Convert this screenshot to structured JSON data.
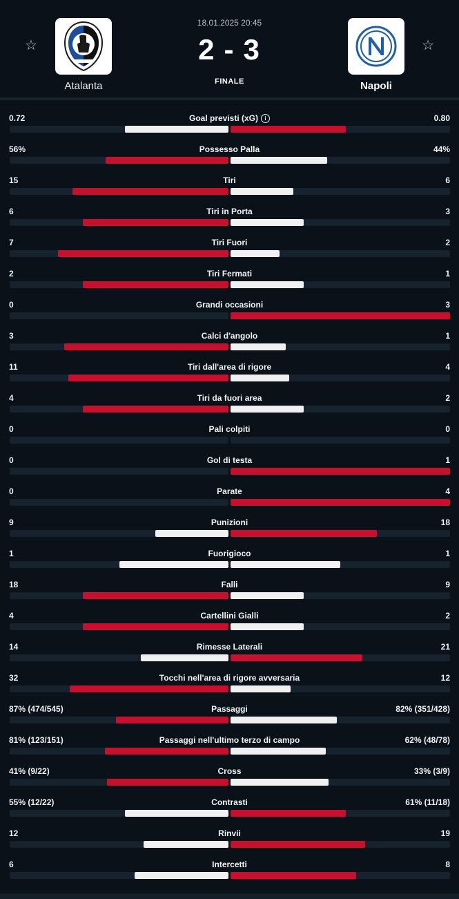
{
  "match": {
    "datetime": "18.01.2025 20:45",
    "home_score": "2",
    "separator": "-",
    "away_score": "3",
    "status": "FINALE",
    "home_team": "Atalanta",
    "away_team": "Napoli",
    "favorite_icon": "star-outline-icon",
    "colors": {
      "background": "#0a1118",
      "winner_bar": "#c8102e",
      "other_bar": "#f0f0f0",
      "track": "#16232e"
    }
  },
  "stats": [
    {
      "label": "Goal previsti (xG)",
      "info": "i",
      "home": "0.72",
      "away": "0.80",
      "home_share": 0.474,
      "away_share": 0.526,
      "winner": "away"
    },
    {
      "label": "Possesso Palla",
      "home": "56%",
      "away": "44%",
      "home_share": 0.56,
      "away_share": 0.44,
      "winner": "home"
    },
    {
      "label": "Tiri",
      "home": "15",
      "away": "6",
      "home_share": 0.714,
      "away_share": 0.286,
      "winner": "home"
    },
    {
      "label": "Tiri in Porta",
      "home": "6",
      "away": "3",
      "home_share": 0.667,
      "away_share": 0.333,
      "winner": "home"
    },
    {
      "label": "Tiri Fuori",
      "home": "7",
      "away": "2",
      "home_share": 0.778,
      "away_share": 0.222,
      "winner": "home"
    },
    {
      "label": "Tiri Fermati",
      "home": "2",
      "away": "1",
      "home_share": 0.667,
      "away_share": 0.333,
      "winner": "home"
    },
    {
      "label": "Grandi occasioni",
      "home": "0",
      "away": "3",
      "home_share": 0,
      "away_share": 1,
      "winner": "away"
    },
    {
      "label": "Calci d'angolo",
      "home": "3",
      "away": "1",
      "home_share": 0.75,
      "away_share": 0.25,
      "winner": "home"
    },
    {
      "label": "Tiri dall'area di rigore",
      "home": "11",
      "away": "4",
      "home_share": 0.733,
      "away_share": 0.267,
      "winner": "home"
    },
    {
      "label": "Tiri da fuori area",
      "home": "4",
      "away": "2",
      "home_share": 0.667,
      "away_share": 0.333,
      "winner": "home"
    },
    {
      "label": "Pali colpiti",
      "home": "0",
      "away": "0",
      "home_share": 0,
      "away_share": 0,
      "winner": "none"
    },
    {
      "label": "Gol di testa",
      "home": "0",
      "away": "1",
      "home_share": 0,
      "away_share": 1,
      "winner": "away"
    },
    {
      "label": "Parate",
      "home": "0",
      "away": "4",
      "home_share": 0,
      "away_share": 1,
      "winner": "away"
    },
    {
      "label": "Punizioni",
      "home": "9",
      "away": "18",
      "home_share": 0.333,
      "away_share": 0.667,
      "winner": "away"
    },
    {
      "label": "Fuorigioco",
      "home": "1",
      "away": "1",
      "home_share": 0.5,
      "away_share": 0.5,
      "winner": "none"
    },
    {
      "label": "Falli",
      "home": "18",
      "away": "9",
      "home_share": 0.667,
      "away_share": 0.333,
      "winner": "home"
    },
    {
      "label": "Cartellini Gialli",
      "home": "4",
      "away": "2",
      "home_share": 0.667,
      "away_share": 0.333,
      "winner": "home"
    },
    {
      "label": "Rimesse Laterali",
      "home": "14",
      "away": "21",
      "home_share": 0.4,
      "away_share": 0.6,
      "winner": "away"
    },
    {
      "label": "Tocchi nell'area di rigore avversaria",
      "home": "32",
      "away": "12",
      "home_share": 0.727,
      "away_share": 0.273,
      "winner": "home"
    },
    {
      "label": "Passaggi",
      "home": "87% (474/545)",
      "away": "82% (351/428)",
      "home_share": 0.515,
      "away_share": 0.485,
      "winner": "home"
    },
    {
      "label": "Passaggi nell'ultimo terzo di campo",
      "home": "81% (123/151)",
      "away": "62% (48/78)",
      "home_share": 0.566,
      "away_share": 0.434,
      "winner": "home"
    },
    {
      "label": "Cross",
      "home": "41% (9/22)",
      "away": "33% (3/9)",
      "home_share": 0.554,
      "away_share": 0.446,
      "winner": "home"
    },
    {
      "label": "Contrasti",
      "home": "55% (12/22)",
      "away": "61% (11/18)",
      "home_share": 0.474,
      "away_share": 0.526,
      "winner": "away"
    },
    {
      "label": "Rinvii",
      "home": "12",
      "away": "19",
      "home_share": 0.387,
      "away_share": 0.613,
      "winner": "away"
    },
    {
      "label": "Intercetti",
      "home": "6",
      "away": "8",
      "home_share": 0.429,
      "away_share": 0.571,
      "winner": "away"
    }
  ]
}
